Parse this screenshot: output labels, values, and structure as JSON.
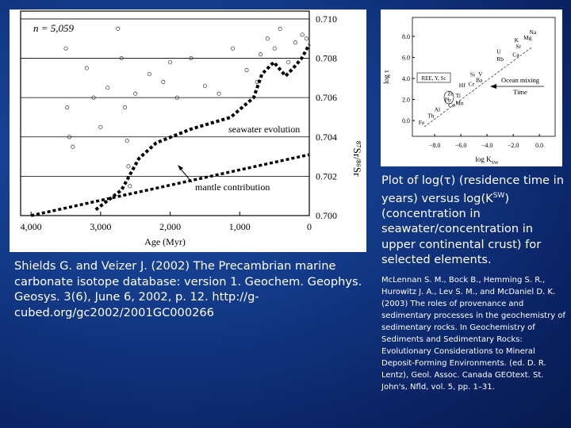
{
  "left_figure": {
    "n_label": "n = 5,059",
    "xlabel": "Age (Myr)",
    "ylabel": "⁸⁷Sr/⁸⁶Sr",
    "xlim": [
      4150,
      0
    ],
    "ylim": [
      0.7,
      0.7104
    ],
    "xticks": [
      {
        "value": 4000,
        "label": "4,000"
      },
      {
        "value": 3000,
        "label": "3,000"
      },
      {
        "value": 2000,
        "label": "2,000"
      },
      {
        "value": 1000,
        "label": "1,000"
      },
      0
    ],
    "yticks": [
      {
        "value": 0.7,
        "label": "0.700"
      },
      {
        "value": 0.702,
        "label": "0.702"
      },
      {
        "value": 0.704,
        "label": "0.704"
      },
      {
        "value": 0.706,
        "label": "0.706"
      },
      {
        "value": 0.708,
        "label": "0.708"
      },
      {
        "value": 0.71,
        "label": "0.710"
      }
    ],
    "grid": true,
    "samples": {
      "x": [
        3500,
        3480,
        3450,
        3400,
        3200,
        3100,
        3000,
        2900,
        2750,
        2700,
        2650,
        2620,
        2600,
        2580,
        2500,
        2300,
        2100,
        2000,
        1900,
        1700,
        1500,
        1300,
        1100,
        900,
        750,
        700,
        600,
        500,
        420,
        300,
        200,
        100,
        40
      ],
      "y": [
        0.7085,
        0.7055,
        0.704,
        0.7035,
        0.7075,
        0.706,
        0.7045,
        0.7065,
        0.7095,
        0.708,
        0.7055,
        0.7038,
        0.7025,
        0.7015,
        0.7062,
        0.7072,
        0.7068,
        0.7078,
        0.706,
        0.708,
        0.7066,
        0.7062,
        0.7085,
        0.7074,
        0.7068,
        0.7082,
        0.709,
        0.7085,
        0.7095,
        0.7078,
        0.7088,
        0.7092,
        0.709
      ]
    },
    "seawater": {
      "name": "seawater evolution",
      "x": [
        3070,
        2700,
        2450,
        2200,
        1700,
        1130,
        800,
        680,
        510,
        340,
        230,
        110,
        0
      ],
      "y": [
        0.7003,
        0.7013,
        0.7029,
        0.7037,
        0.7044,
        0.705,
        0.706,
        0.7072,
        0.7078,
        0.7071,
        0.7075,
        0.708,
        0.7087
      ]
    },
    "mantle": {
      "name": "mantle contribution",
      "x": [
        4000,
        0
      ],
      "y": [
        0.7,
        0.7031
      ]
    }
  },
  "right_figure": {
    "xlabel": "log K",
    "xlabel_sup": "SW",
    "ylabel": "log τ",
    "xlim": [
      -9.7,
      1.2
    ],
    "ylim": [
      -1.5,
      9.8
    ],
    "xticks": [
      {
        "value": -8,
        "label": "−8.0"
      },
      {
        "value": -6,
        "label": "−6.0"
      },
      {
        "value": -4,
        "label": "−4.0"
      },
      {
        "value": -2,
        "label": "−2.0"
      },
      {
        "value": 0,
        "label": "0.0"
      }
    ],
    "yticks": [
      {
        "value": 0,
        "label": "0.0"
      },
      {
        "value": 2,
        "label": "2.0"
      },
      {
        "value": 4,
        "label": "4.0"
      },
      {
        "value": 6,
        "label": "6.0"
      },
      {
        "value": 8,
        "label": "8.0"
      }
    ],
    "box_label": "REE, Y, Sc",
    "arrow_label": "Ocean mixing",
    "arrow_sub": "Time",
    "elements": {
      "names": [
        "Na",
        "Mg",
        "K",
        "Sr",
        "Ca",
        "U",
        "Rb",
        "Si",
        "V",
        "Hf",
        "Cr",
        "Ba",
        "Zr",
        "Ti",
        "Mn",
        "Co",
        "Pb",
        "Al",
        "Th",
        "Fe"
      ],
      "x": [
        -0.5,
        -0.9,
        -1.75,
        -1.6,
        -1.8,
        -3.1,
        -3.0,
        -5.1,
        -4.5,
        -5.9,
        -5.2,
        -4.6,
        -6.8,
        -6.2,
        -6.1,
        -6.7,
        -7.0,
        -7.8,
        -8.3,
        -9.0
      ],
      "y": [
        8.45,
        7.9,
        7.7,
        7.1,
        6.3,
        6.6,
        5.9,
        4.4,
        4.45,
        3.4,
        3.5,
        3.9,
        2.6,
        2.4,
        1.7,
        1.5,
        2.0,
        1.1,
        0.5,
        -0.15
      ]
    }
  },
  "caption": {
    "part1": "Plot of log(τ) (residence time in years) versus log(K",
    "sup": "SW",
    "part2": ") (concentration in seawater/concentration in upper continental crust) for selected elements.",
    "reference": "McLennan S. M., Bock B., Hemming S. R., Hurowitz J. A., Lev S. M., and McDaniel D. K. (2003) The roles of provenance and sedimentary processes in the geochemistry of sedimentary rocks. In Geochemistry of Sediments and Sedimentary Rocks: Evolutionary Considerations to Mineral Deposit-Forming Environments. (ed. D. R. Lentz), Geol. Assoc. Canada GEOtext. St. John's, Nfld, vol. 5, pp. 1–31."
  },
  "citation": "Shields G. and Veizer J. (2002) The Precambrian marine carbonate isotope database: version 1. Geochem. Geophys. Geosys. 3(6), June 6, 2002, p. 12. http://g-cubed.org/gc2002/2001GC000266"
}
